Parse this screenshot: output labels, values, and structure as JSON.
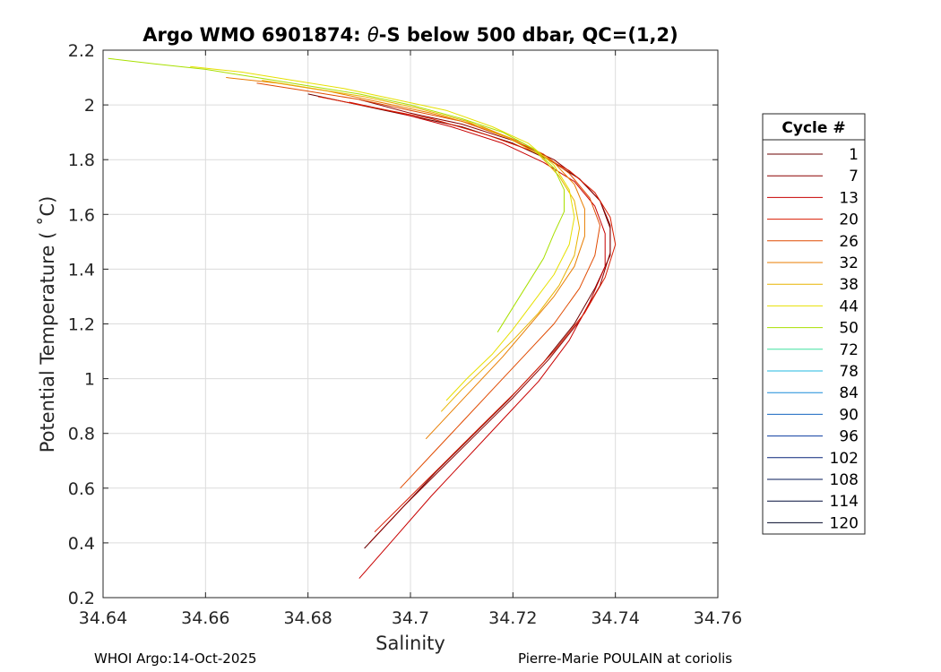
{
  "chart_data": {
    "type": "line",
    "title_prefix": "Argo WMO 6901874: ",
    "title_theta": "θ",
    "title_suffix": "-S below 500 dbar,  QC=(1,2)",
    "xlabel": "Salinity",
    "ylabel": "Potential Temperature ( ˚C)",
    "xlim": [
      34.64,
      34.76
    ],
    "ylim": [
      0.2,
      2.2
    ],
    "xticks": [
      34.64,
      34.66,
      34.68,
      34.7,
      34.72,
      34.74,
      34.76
    ],
    "xtick_labels": [
      "34.64",
      "34.66",
      "34.68",
      "34.7",
      "34.72",
      "34.74",
      "34.76"
    ],
    "yticks": [
      0.2,
      0.4,
      0.6,
      0.8,
      1.0,
      1.2,
      1.4,
      1.6,
      1.8,
      2.0,
      2.2
    ],
    "ytick_labels": [
      "0.2",
      "0.4",
      "0.6",
      "0.8",
      "1",
      "1.2",
      "1.4",
      "1.6",
      "1.8",
      "2",
      "2.2"
    ],
    "grid": true,
    "legend_title": "Cycle #",
    "legend_position": "right",
    "series": [
      {
        "name": "1",
        "color": "#6b0000",
        "x": [
          34.691,
          34.698,
          34.705,
          34.712,
          34.719,
          34.726,
          34.732,
          34.736,
          34.739,
          34.739,
          34.737,
          34.733,
          34.727,
          34.72,
          34.71,
          34.7,
          34.69,
          34.68
        ],
        "y": [
          0.38,
          0.52,
          0.66,
          0.79,
          0.92,
          1.06,
          1.2,
          1.33,
          1.45,
          1.55,
          1.65,
          1.73,
          1.8,
          1.86,
          1.92,
          1.96,
          2.0,
          2.04
        ]
      },
      {
        "name": "7",
        "color": "#8b0000",
        "x": [
          34.692,
          34.699,
          34.706,
          34.713,
          34.72,
          34.727,
          34.733,
          34.737,
          34.739,
          34.739,
          34.737,
          34.733,
          34.728,
          34.72,
          34.71,
          34.7,
          34.69
        ],
        "y": [
          0.4,
          0.54,
          0.67,
          0.8,
          0.93,
          1.07,
          1.21,
          1.34,
          1.46,
          1.56,
          1.65,
          1.73,
          1.8,
          1.87,
          1.93,
          1.97,
          2.02
        ]
      },
      {
        "name": "13",
        "color": "#c80000",
        "x": [
          34.69,
          34.697,
          34.704,
          34.711,
          34.718,
          34.725,
          34.731,
          34.735,
          34.738,
          34.738,
          34.736,
          34.732,
          34.726,
          34.718,
          34.708,
          34.698,
          34.688
        ],
        "y": [
          0.27,
          0.42,
          0.57,
          0.71,
          0.85,
          0.99,
          1.14,
          1.28,
          1.41,
          1.53,
          1.63,
          1.72,
          1.79,
          1.86,
          1.92,
          1.97,
          2.01
        ]
      },
      {
        "name": "20",
        "color": "#d91c00",
        "x": [
          34.693,
          34.7,
          34.707,
          34.714,
          34.721,
          34.728,
          34.734,
          34.738,
          34.74,
          34.739,
          34.736,
          34.731,
          34.724,
          34.715,
          34.704,
          34.693,
          34.682
        ],
        "y": [
          0.44,
          0.57,
          0.7,
          0.83,
          0.96,
          1.1,
          1.24,
          1.37,
          1.49,
          1.59,
          1.68,
          1.76,
          1.83,
          1.89,
          1.95,
          1.99,
          2.03
        ]
      },
      {
        "name": "26",
        "color": "#e04a00",
        "x": [
          34.698,
          34.704,
          34.71,
          34.716,
          34.722,
          34.728,
          34.733,
          34.736,
          34.737,
          34.735,
          34.731,
          34.726,
          34.719,
          34.71,
          34.7,
          34.69,
          34.68,
          34.67
        ],
        "y": [
          0.6,
          0.72,
          0.84,
          0.96,
          1.08,
          1.2,
          1.33,
          1.45,
          1.56,
          1.66,
          1.75,
          1.82,
          1.88,
          1.94,
          1.98,
          2.02,
          2.05,
          2.08
        ]
      },
      {
        "name": "32",
        "color": "#e87d00",
        "x": [
          34.703,
          34.708,
          34.713,
          34.718,
          34.723,
          34.728,
          34.732,
          34.734,
          34.734,
          34.732,
          34.728,
          34.722,
          34.714,
          34.704,
          34.694,
          34.684,
          34.674,
          34.664
        ],
        "y": [
          0.78,
          0.88,
          0.98,
          1.08,
          1.19,
          1.3,
          1.41,
          1.52,
          1.62,
          1.71,
          1.79,
          1.86,
          1.92,
          1.97,
          2.01,
          2.05,
          2.08,
          2.1
        ]
      },
      {
        "name": "38",
        "color": "#e8b400",
        "x": [
          34.706,
          34.71,
          34.715,
          34.72,
          34.725,
          34.729,
          34.732,
          34.733,
          34.732,
          34.729,
          34.725,
          34.719,
          34.711,
          34.701,
          34.691,
          34.681,
          34.671
        ],
        "y": [
          0.88,
          0.96,
          1.05,
          1.14,
          1.24,
          1.34,
          1.45,
          1.55,
          1.65,
          1.74,
          1.82,
          1.88,
          1.94,
          1.99,
          2.03,
          2.06,
          2.09
        ]
      },
      {
        "name": "44",
        "color": "#e6e000",
        "x": [
          34.707,
          34.711,
          34.716,
          34.72,
          34.724,
          34.728,
          34.731,
          34.732,
          34.731,
          34.728,
          34.723,
          34.716,
          34.707,
          34.697,
          34.687,
          34.677,
          34.667,
          34.657
        ],
        "y": [
          0.92,
          1.0,
          1.09,
          1.18,
          1.28,
          1.38,
          1.49,
          1.59,
          1.69,
          1.78,
          1.86,
          1.92,
          1.98,
          2.02,
          2.06,
          2.09,
          2.12,
          2.14
        ]
      },
      {
        "name": "50",
        "color": "#a8e000",
        "x": [
          34.717,
          34.72,
          34.723,
          34.726,
          34.728,
          34.73,
          34.73,
          34.728,
          34.724,
          34.718,
          34.71,
          34.7,
          34.69,
          34.68,
          34.67,
          34.66,
          34.65,
          34.641
        ],
        "y": [
          1.17,
          1.26,
          1.35,
          1.44,
          1.53,
          1.61,
          1.69,
          1.77,
          1.84,
          1.9,
          1.95,
          2.0,
          2.04,
          2.07,
          2.1,
          2.13,
          2.15,
          2.17
        ]
      },
      {
        "name": "72",
        "color": "#40e0a0",
        "x": [],
        "y": []
      },
      {
        "name": "78",
        "color": "#20b8e0",
        "x": [],
        "y": []
      },
      {
        "name": "84",
        "color": "#1a8cd8",
        "x": [],
        "y": []
      },
      {
        "name": "90",
        "color": "#1464c0",
        "x": [],
        "y": []
      },
      {
        "name": "96",
        "color": "#0c3ca0",
        "x": [],
        "y": []
      },
      {
        "name": "102",
        "color": "#08247a",
        "x": [],
        "y": []
      },
      {
        "name": "108",
        "color": "#061858",
        "x": [],
        "y": []
      },
      {
        "name": "114",
        "color": "#040f3c",
        "x": [],
        "y": []
      },
      {
        "name": "120",
        "color": "#020828",
        "x": [],
        "y": []
      }
    ]
  },
  "footer": {
    "left": "WHOI Argo:14-Oct-2025",
    "right": "Pierre-Marie POULAIN at coriolis"
  }
}
